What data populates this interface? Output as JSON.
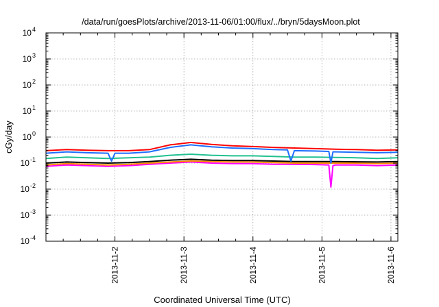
{
  "chart_data": {
    "type": "line",
    "title": "/data/run/goesPlots/archive/2013-11-06/01:00/flux/../bryn/5daysMoon.plot",
    "xlabel": "Coordinated Universal Time (UTC)",
    "ylabel": "cGy/day",
    "yscale": "log",
    "ylim": [
      0.0001,
      10000
    ],
    "xlim": [
      0,
      5.1
    ],
    "grid": true,
    "legend": "none",
    "x_ticks": [
      {
        "x": 1,
        "label": "2013-11-2"
      },
      {
        "x": 2,
        "label": "2013-11-3"
      },
      {
        "x": 3,
        "label": "2013-11-4"
      },
      {
        "x": 4,
        "label": "2013-11-5"
      },
      {
        "x": 5,
        "label": "2013-11-6"
      }
    ],
    "y_ticks": [
      {
        "value": 0.0001,
        "base": "10",
        "exp": "-4"
      },
      {
        "value": 0.001,
        "base": "10",
        "exp": "-3"
      },
      {
        "value": 0.01,
        "base": "10",
        "exp": "-2"
      },
      {
        "value": 0.1,
        "base": "10",
        "exp": "-1"
      },
      {
        "value": 1,
        "base": "10",
        "exp": "0"
      },
      {
        "value": 10,
        "base": "10",
        "exp": "1"
      },
      {
        "value": 100,
        "base": "10",
        "exp": "2"
      },
      {
        "value": 1000,
        "base": "10",
        "exp": "3"
      },
      {
        "value": 10000,
        "base": "10",
        "exp": "4"
      }
    ],
    "series": [
      {
        "color": "#ff00ff",
        "x": [
          0,
          0.3,
          0.6,
          0.9,
          1.2,
          1.5,
          1.8,
          2.1,
          2.4,
          2.7,
          3.0,
          3.3,
          3.6,
          3.9,
          4.1,
          4.13,
          4.16,
          4.2,
          4.5,
          4.8,
          5.1
        ],
        "y": [
          0.075,
          0.085,
          0.08,
          0.075,
          0.08,
          0.09,
          0.1,
          0.11,
          0.1,
          0.095,
          0.095,
          0.09,
          0.09,
          0.088,
          0.085,
          0.012,
          0.08,
          0.085,
          0.085,
          0.08,
          0.085
        ]
      },
      {
        "color": "#ff8c00",
        "x": [
          0,
          0.3,
          0.6,
          0.9,
          1.2,
          1.5,
          1.8,
          2.1,
          2.4,
          2.7,
          3.0,
          3.3,
          3.6,
          3.9,
          4.2,
          4.5,
          4.8,
          5.1
        ],
        "y": [
          0.085,
          0.095,
          0.09,
          0.085,
          0.09,
          0.1,
          0.11,
          0.12,
          0.115,
          0.11,
          0.11,
          0.105,
          0.1,
          0.1,
          0.1,
          0.1,
          0.095,
          0.1
        ]
      },
      {
        "color": "#000000",
        "x": [
          0,
          0.3,
          0.6,
          0.9,
          1.2,
          1.5,
          1.8,
          2.1,
          2.4,
          2.7,
          3.0,
          3.3,
          3.6,
          3.9,
          4.2,
          4.5,
          4.8,
          5.1
        ],
        "y": [
          0.1,
          0.11,
          0.105,
          0.1,
          0.105,
          0.115,
          0.13,
          0.14,
          0.13,
          0.125,
          0.125,
          0.12,
          0.115,
          0.115,
          0.115,
          0.112,
          0.11,
          0.115
        ]
      },
      {
        "color": "#20c090",
        "x": [
          0,
          0.3,
          0.6,
          0.9,
          1.2,
          1.5,
          1.8,
          2.1,
          2.4,
          2.7,
          3.0,
          3.3,
          3.6,
          3.9,
          4.2,
          4.5,
          4.8,
          5.1
        ],
        "y": [
          0.15,
          0.17,
          0.16,
          0.15,
          0.16,
          0.17,
          0.2,
          0.22,
          0.2,
          0.19,
          0.19,
          0.18,
          0.17,
          0.17,
          0.165,
          0.16,
          0.15,
          0.16
        ]
      },
      {
        "color": "#1e6eff",
        "x": [
          0,
          0.3,
          0.6,
          0.9,
          0.95,
          1.0,
          1.2,
          1.5,
          1.8,
          2.1,
          2.4,
          2.7,
          3.0,
          3.3,
          3.5,
          3.55,
          3.6,
          3.9,
          4.1,
          4.13,
          4.16,
          4.2,
          4.5,
          4.8,
          5.1
        ],
        "y": [
          0.24,
          0.27,
          0.25,
          0.24,
          0.12,
          0.24,
          0.24,
          0.27,
          0.4,
          0.5,
          0.42,
          0.38,
          0.36,
          0.33,
          0.32,
          0.12,
          0.3,
          0.29,
          0.28,
          0.1,
          0.27,
          0.27,
          0.26,
          0.25,
          0.26
        ]
      },
      {
        "color": "#ff0000",
        "x": [
          0,
          0.3,
          0.6,
          0.9,
          1.2,
          1.5,
          1.8,
          2.1,
          2.4,
          2.7,
          3.0,
          3.3,
          3.6,
          3.9,
          4.2,
          4.5,
          4.8,
          5.1
        ],
        "y": [
          0.3,
          0.33,
          0.31,
          0.3,
          0.3,
          0.33,
          0.5,
          0.62,
          0.52,
          0.46,
          0.43,
          0.4,
          0.38,
          0.36,
          0.34,
          0.33,
          0.31,
          0.32
        ]
      }
    ]
  }
}
